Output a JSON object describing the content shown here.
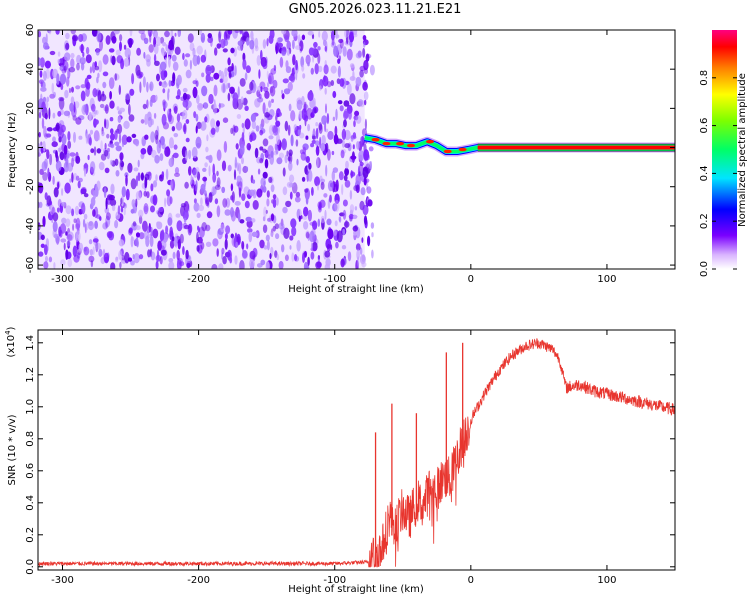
{
  "figure": {
    "title": "GN05.2026.023.11.21.E21"
  },
  "chart_data": [
    {
      "type": "heatmap",
      "title": "GN05.2026.023.11.21.E21",
      "xlabel": "Height of straight line (km)",
      "ylabel": "Frequency (Hz)",
      "xlim": [
        -318,
        150
      ],
      "ylim": [
        -62,
        60
      ],
      "xticks": [
        -300,
        -200,
        -100,
        0,
        100
      ],
      "yticks": [
        -60,
        -40,
        -20,
        0,
        20,
        40,
        60
      ],
      "noise_region_x": [
        -318,
        -78
      ],
      "signal_start_x": -78,
      "signal_freq_track": [
        {
          "x": -78,
          "y": 5
        },
        {
          "x": -70,
          "y": 4
        },
        {
          "x": -62,
          "y": 2
        },
        {
          "x": -55,
          "y": 2
        },
        {
          "x": -48,
          "y": 1
        },
        {
          "x": -40,
          "y": 1
        },
        {
          "x": -32,
          "y": 3
        },
        {
          "x": -25,
          "y": 1
        },
        {
          "x": -18,
          "y": -2
        },
        {
          "x": -10,
          "y": -2
        },
        {
          "x": -2,
          "y": -1
        },
        {
          "x": 5,
          "y": 0
        },
        {
          "x": 150,
          "y": 0
        }
      ],
      "colorbar": {
        "label": "Normalized spectral amplitude",
        "range": [
          0.0,
          1.0
        ],
        "ticks": [
          0.0,
          0.2,
          0.4,
          0.6,
          0.8
        ],
        "colormap": "rainbow (white → violet → blue → cyan → green → yellow → orange → red → magenta)"
      },
      "grid": false
    },
    {
      "type": "line",
      "xlabel": "Height of straight line (km)",
      "ylabel": "SNR (10 * v/v)",
      "y_multiplier_label": "(x10",
      "y_multiplier_exp": "4",
      "y_multiplier_close": ")",
      "xlim": [
        -318,
        150
      ],
      "ylim": [
        -0.02,
        1.48
      ],
      "xticks": [
        -300,
        -200,
        -100,
        0,
        100
      ],
      "yticks": [
        0.0,
        0.2,
        0.4,
        0.6,
        0.8,
        1.0,
        1.2,
        1.4
      ],
      "series": [
        {
          "color": "#e8352e",
          "x": [
            -318,
            -250,
            -200,
            -150,
            -100,
            -75,
            -65,
            -60,
            -55,
            -50,
            -45,
            -40,
            -35,
            -30,
            -25,
            -20,
            -15,
            -10,
            -5,
            0,
            10,
            20,
            30,
            40,
            50,
            60,
            65,
            70,
            80,
            90,
            100,
            110,
            120,
            130,
            140,
            150
          ],
          "y": [
            0.02,
            0.02,
            0.02,
            0.02,
            0.02,
            0.03,
            0.12,
            0.32,
            0.26,
            0.36,
            0.3,
            0.42,
            0.38,
            0.5,
            0.48,
            0.56,
            0.55,
            0.7,
            0.8,
            0.92,
            1.08,
            1.22,
            1.32,
            1.38,
            1.4,
            1.36,
            1.3,
            1.12,
            1.14,
            1.1,
            1.08,
            1.06,
            1.04,
            1.02,
            1.0,
            0.98
          ]
        }
      ],
      "spikes": [
        {
          "x": -70,
          "y": 0.84
        },
        {
          "x": -58,
          "y": 1.02
        },
        {
          "x": -40,
          "y": 0.96
        },
        {
          "x": -18,
          "y": 1.34
        },
        {
          "x": -6,
          "y": 1.4
        }
      ],
      "grid": false
    }
  ]
}
